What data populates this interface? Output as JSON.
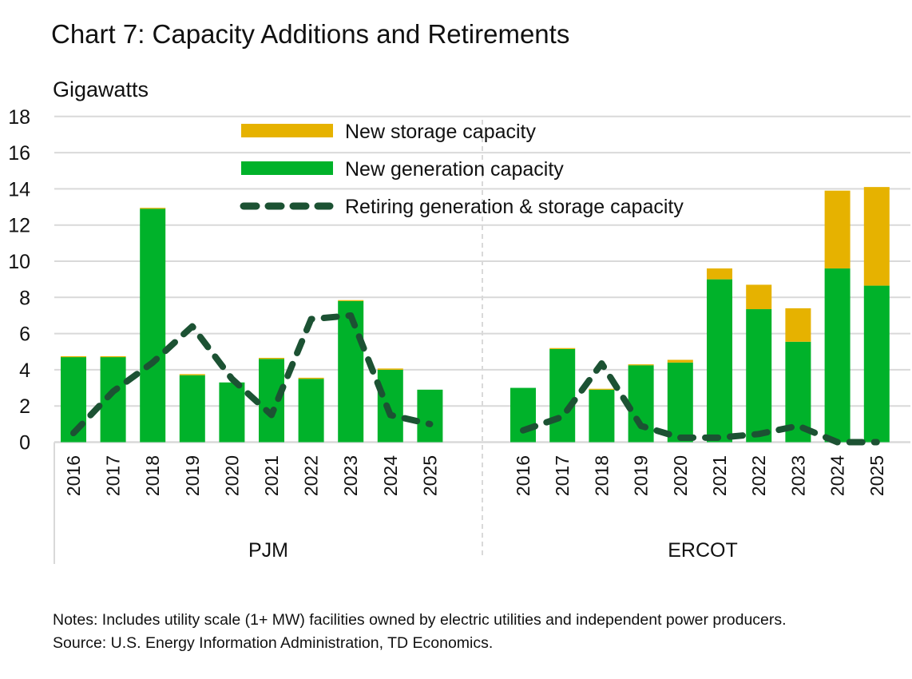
{
  "title": "Chart 7: Capacity Additions and Retirements",
  "notes": "Notes: Includes utility scale (1+ MW) facilities owned by electric utilities and independent power producers.",
  "source": "Source: U.S. Energy Information Administration, TD Economics.",
  "colors": {
    "storage": "#e6b200",
    "generation": "#00b22a",
    "retiring": "#1c5233",
    "grid": "#d9d9d9"
  },
  "chart_data": {
    "type": "bar",
    "stacked": true,
    "ylabel": "Gigawatts",
    "ylim": [
      0,
      18
    ],
    "yticks": [
      0,
      2,
      4,
      6,
      8,
      10,
      12,
      14,
      16,
      18
    ],
    "grid": true,
    "legend_position": "top",
    "groups": [
      {
        "name": "PJM",
        "categories": [
          "2016",
          "2017",
          "2018",
          "2019",
          "2020",
          "2021",
          "2022",
          "2023",
          "2024",
          "2025"
        ],
        "generation": [
          4.7,
          4.7,
          12.9,
          3.7,
          3.3,
          4.6,
          3.5,
          7.8,
          4.0,
          2.9
        ],
        "storage": [
          0.05,
          0.05,
          0.05,
          0.06,
          0,
          0.06,
          0.06,
          0.05,
          0.07,
          0
        ],
        "retiring": [
          0.5,
          2.8,
          4.4,
          6.4,
          3.5,
          1.5,
          6.8,
          7.0,
          1.5,
          1.0
        ]
      },
      {
        "name": "ERCOT",
        "categories": [
          "2016",
          "2017",
          "2018",
          "2019",
          "2020",
          "2021",
          "2022",
          "2023",
          "2024",
          "2025"
        ],
        "generation": [
          3.0,
          5.15,
          2.9,
          4.25,
          4.4,
          9.0,
          7.35,
          5.55,
          9.6,
          8.65
        ],
        "storage": [
          0,
          0.05,
          0.05,
          0.05,
          0.15,
          0.6,
          1.35,
          1.85,
          4.3,
          5.45
        ],
        "retiring": [
          0.65,
          1.4,
          4.35,
          0.9,
          0.25,
          0.25,
          0.45,
          0.9,
          0.0,
          0.0
        ]
      }
    ],
    "series": [
      {
        "name": "New storage capacity",
        "type": "bar"
      },
      {
        "name": "New generation capacity",
        "type": "bar"
      },
      {
        "name": "Retiring generation & storage capacity",
        "type": "line-dashed"
      }
    ]
  }
}
